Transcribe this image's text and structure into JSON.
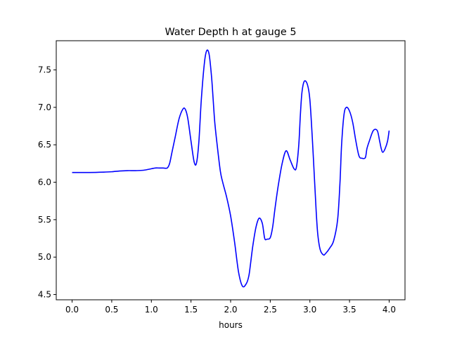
{
  "chart_data": {
    "type": "line",
    "title": "Water Depth h at gauge 5",
    "xlabel": "hours",
    "ylabel": "",
    "xlim": [
      -0.2,
      4.2
    ],
    "ylim": [
      4.43,
      7.89
    ],
    "xticks": [
      0.0,
      0.5,
      1.0,
      1.5,
      2.0,
      2.5,
      3.0,
      3.5,
      4.0
    ],
    "xtick_labels": [
      "0.0",
      "0.5",
      "1.0",
      "1.5",
      "2.0",
      "2.5",
      "3.0",
      "3.5",
      "4.0"
    ],
    "yticks": [
      4.5,
      5.0,
      5.5,
      6.0,
      6.5,
      7.0,
      7.5
    ],
    "ytick_labels": [
      "4.5",
      "5.0",
      "5.5",
      "6.0",
      "6.5",
      "7.0",
      "7.5"
    ],
    "grid": false,
    "legend": "none",
    "series": [
      {
        "color": "#0000ff",
        "x": [
          0.0,
          0.2,
          0.4,
          0.5,
          0.6,
          0.7,
          0.8,
          0.9,
          1.0,
          1.05,
          1.1,
          1.15,
          1.2,
          1.23,
          1.26,
          1.3,
          1.35,
          1.4,
          1.43,
          1.46,
          1.5,
          1.54,
          1.57,
          1.6,
          1.63,
          1.67,
          1.7,
          1.73,
          1.76,
          1.78,
          1.8,
          1.83,
          1.87,
          1.9,
          1.95,
          2.0,
          2.05,
          2.1,
          2.15,
          2.2,
          2.23,
          2.25,
          2.28,
          2.32,
          2.36,
          2.4,
          2.43,
          2.46,
          2.5,
          2.53,
          2.56,
          2.6,
          2.65,
          2.7,
          2.75,
          2.8,
          2.83,
          2.86,
          2.88,
          2.9,
          2.93,
          2.97,
          3.0,
          3.03,
          3.06,
          3.08,
          3.1,
          3.13,
          3.17,
          3.2,
          3.25,
          3.3,
          3.35,
          3.38,
          3.4,
          3.43,
          3.46,
          3.5,
          3.54,
          3.58,
          3.62,
          3.66,
          3.7,
          3.72,
          3.75,
          3.8,
          3.85,
          3.88,
          3.9,
          3.92,
          3.95,
          3.98,
          4.0
        ],
        "y": [
          6.13,
          6.13,
          6.135,
          6.14,
          6.15,
          6.155,
          6.155,
          6.16,
          6.18,
          6.19,
          6.19,
          6.19,
          6.19,
          6.25,
          6.4,
          6.6,
          6.85,
          6.98,
          6.97,
          6.85,
          6.55,
          6.27,
          6.26,
          6.55,
          7.1,
          7.6,
          7.76,
          7.7,
          7.4,
          7.1,
          6.8,
          6.5,
          6.15,
          6.0,
          5.8,
          5.55,
          5.2,
          4.8,
          4.61,
          4.65,
          4.75,
          4.9,
          5.15,
          5.4,
          5.52,
          5.45,
          5.25,
          5.24,
          5.26,
          5.4,
          5.65,
          5.95,
          6.25,
          6.42,
          6.3,
          6.18,
          6.2,
          6.5,
          6.9,
          7.2,
          7.35,
          7.3,
          7.1,
          6.6,
          6.0,
          5.6,
          5.3,
          5.1,
          5.03,
          5.05,
          5.12,
          5.22,
          5.5,
          6.0,
          6.5,
          6.9,
          7.0,
          6.95,
          6.8,
          6.55,
          6.35,
          6.32,
          6.33,
          6.45,
          6.55,
          6.69,
          6.69,
          6.55,
          6.45,
          6.4,
          6.45,
          6.55,
          6.69
        ]
      }
    ]
  }
}
